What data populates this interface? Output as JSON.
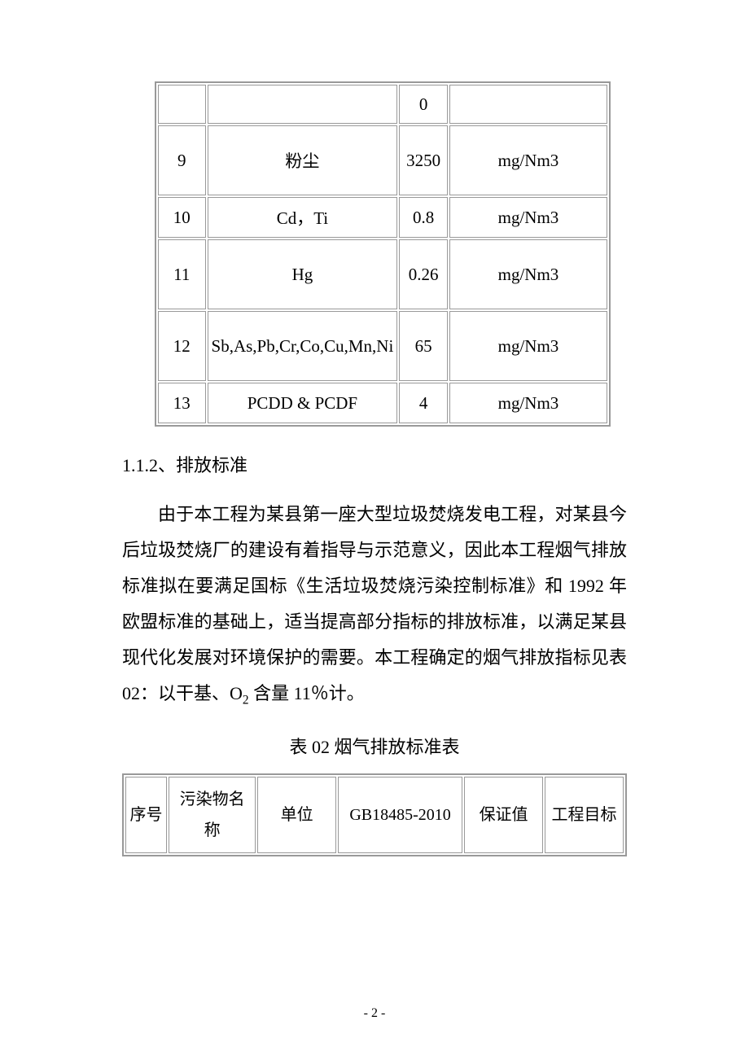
{
  "table1": {
    "rows": [
      {
        "c1": "",
        "c2": "",
        "c3": "0",
        "c4": ""
      },
      {
        "c1": "9",
        "c2": "粉尘",
        "c3": "3250",
        "c4": "mg/Nm3"
      },
      {
        "c1": "10",
        "c2": "Cd，Ti",
        "c3": "0.8",
        "c4": "mg/Nm3"
      },
      {
        "c1": "11",
        "c2": "Hg",
        "c3": "0.26",
        "c4": "mg/Nm3"
      },
      {
        "c1": "12",
        "c2": "Sb,As,Pb,Cr,Co,Cu,Mn,Ni",
        "c3": "65",
        "c4": "mg/Nm3"
      },
      {
        "c1": "13",
        "c2": "PCDD & PCDF",
        "c3": "4",
        "c4": "mg/Nm3"
      }
    ]
  },
  "heading": "1.1.2、排放标准",
  "paragraph_pre": "由于本工程为某县第一座大型垃圾焚烧发电工程，对某县今后垃圾焚烧厂的建设有着指导与示范意义，因此本工程烟气排放标准拟在要满足国标《生活垃圾焚烧污染控制标准》和 1992 年欧盟标准的基础上，适当提高部分指标的排放标准，以满足某县现代化发展对环境保护的需要。本工程确定的烟气排放指标见表02：以干基、O",
  "paragraph_post": " 含量 11％计。",
  "caption": "表 02 烟气排放标准表",
  "table2": {
    "headers": {
      "h1": "序号",
      "h2": "污染物名称",
      "h3": "单位",
      "h4": "GB18485-2010",
      "h5": "保证值",
      "h6": "工程目标"
    }
  },
  "page_number": "- 2 -"
}
